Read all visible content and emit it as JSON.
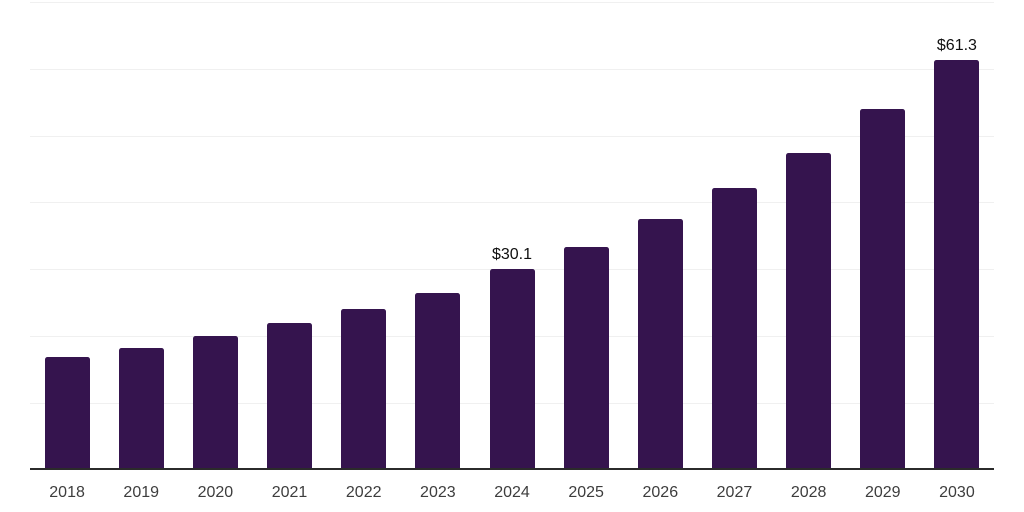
{
  "chart_data": {
    "type": "bar",
    "title": "",
    "xlabel": "",
    "ylabel": "",
    "categories": [
      "2018",
      "2019",
      "2020",
      "2021",
      "2022",
      "2023",
      "2024",
      "2025",
      "2026",
      "2027",
      "2028",
      "2029",
      "2030"
    ],
    "values": [
      16.9,
      18.3,
      20.1,
      22.0,
      24.0,
      26.5,
      30.1,
      33.4,
      37.5,
      42.2,
      47.4,
      53.9,
      61.3
    ],
    "point_labels": [
      "",
      "",
      "",
      "",
      "",
      "",
      "$30.1",
      "",
      "",
      "",
      "",
      "",
      "$61.3"
    ],
    "ylim": [
      0,
      70
    ],
    "grid_step": 10,
    "grid": "horizontal-only",
    "legend": "none",
    "y_tick_labels": [],
    "colors": {
      "bar": "#35144e",
      "gridline": "#f0f0f0",
      "axis_line": "#2b2b2b",
      "tick_label": "#3d3d3d",
      "value_label": "#0f0f0f",
      "background": "#ffffff"
    }
  }
}
